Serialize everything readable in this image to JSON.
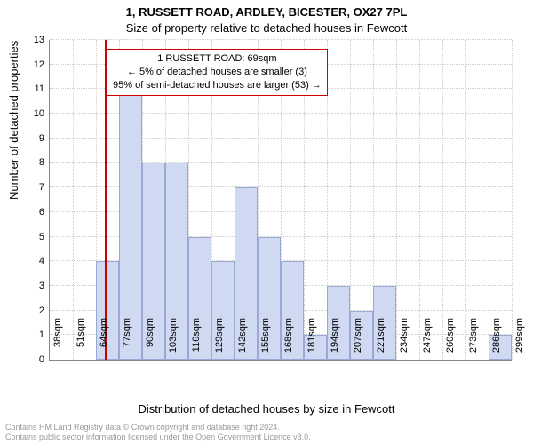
{
  "title_line1": "1, RUSSETT ROAD, ARDLEY, BICESTER, OX27 7PL",
  "title_line2": "Size of property relative to detached houses in Fewcott",
  "ylabel": "Number of detached properties",
  "xlabel": "Distribution of detached houses by size in Fewcott",
  "chart": {
    "type": "histogram",
    "ylim": [
      0,
      13
    ],
    "ytick_step": 1,
    "x_bin_width_sqm": 13,
    "x_start_sqm": 38,
    "x_tick_labels": [
      "38sqm",
      "51sqm",
      "64sqm",
      "77sqm",
      "90sqm",
      "103sqm",
      "116sqm",
      "129sqm",
      "142sqm",
      "155sqm",
      "168sqm",
      "181sqm",
      "194sqm",
      "207sqm",
      "221sqm",
      "234sqm",
      "247sqm",
      "260sqm",
      "273sqm",
      "286sqm",
      "299sqm"
    ],
    "values": [
      0,
      0,
      4,
      11,
      8,
      8,
      5,
      4,
      7,
      5,
      4,
      1,
      3,
      2,
      3,
      0,
      0,
      0,
      0,
      1
    ],
    "bar_fill_color": "#cfd9f2",
    "bar_border_color": "#9aa8d4",
    "grid_color": "#cccccc",
    "axis_color": "#888888",
    "background_color": "#ffffff",
    "reference_line": {
      "value_sqm": 69,
      "color": "#cc0000"
    }
  },
  "annotation": {
    "line1": "1 RUSSETT ROAD: 69sqm",
    "line2": "← 5% of detached houses are smaller (3)",
    "line3": "95% of semi-detached houses are larger (53) →",
    "border_color": "#cc0000",
    "background_color": "#ffffff",
    "fontsize": 11
  },
  "footer": {
    "line1": "Contains HM Land Registry data © Crown copyright and database right 2024.",
    "line2": "Contains public sector information licensed under the Open Government Licence v3.0.",
    "text_color": "#999999"
  }
}
